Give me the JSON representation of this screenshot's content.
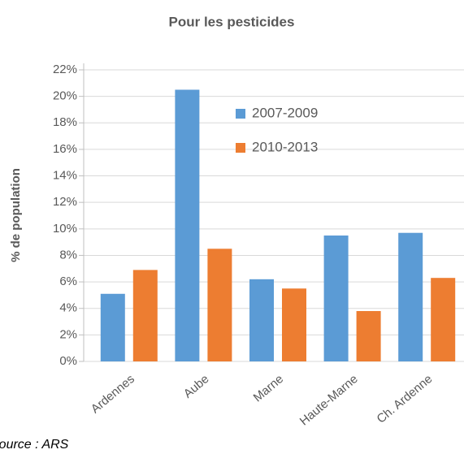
{
  "chart_data": {
    "type": "bar",
    "title": "Pour les pesticides",
    "y_label": "% de population",
    "categories": [
      "Ardennes",
      "Aube",
      "Marne",
      "Haute-Marne",
      "Ch. Ardenne"
    ],
    "series": [
      {
        "name": "2007-2009",
        "color": "#5b9bd5",
        "values": [
          5.1,
          20.5,
          6.2,
          9.5,
          9.7
        ]
      },
      {
        "name": "2010-2013",
        "color": "#ed7d31",
        "values": [
          6.9,
          8.5,
          5.5,
          3.8,
          6.3
        ]
      }
    ],
    "ylim": [
      0,
      22
    ],
    "yticks": [
      {
        "value": 0,
        "label": "0%"
      },
      {
        "value": 2,
        "label": "2%"
      },
      {
        "value": 4,
        "label": "4%"
      },
      {
        "value": 6,
        "label": "6%"
      },
      {
        "value": 8,
        "label": "8%"
      },
      {
        "value": 10,
        "label": "10%"
      },
      {
        "value": 12,
        "label": "12%"
      },
      {
        "value": 14,
        "label": "14%"
      },
      {
        "value": 16,
        "label": "16%"
      },
      {
        "value": 18,
        "label": "18%"
      },
      {
        "value": 20,
        "label": "20%"
      },
      {
        "value": 22,
        "label": "22%"
      }
    ],
    "grid": true,
    "source": "Source : ARS"
  }
}
